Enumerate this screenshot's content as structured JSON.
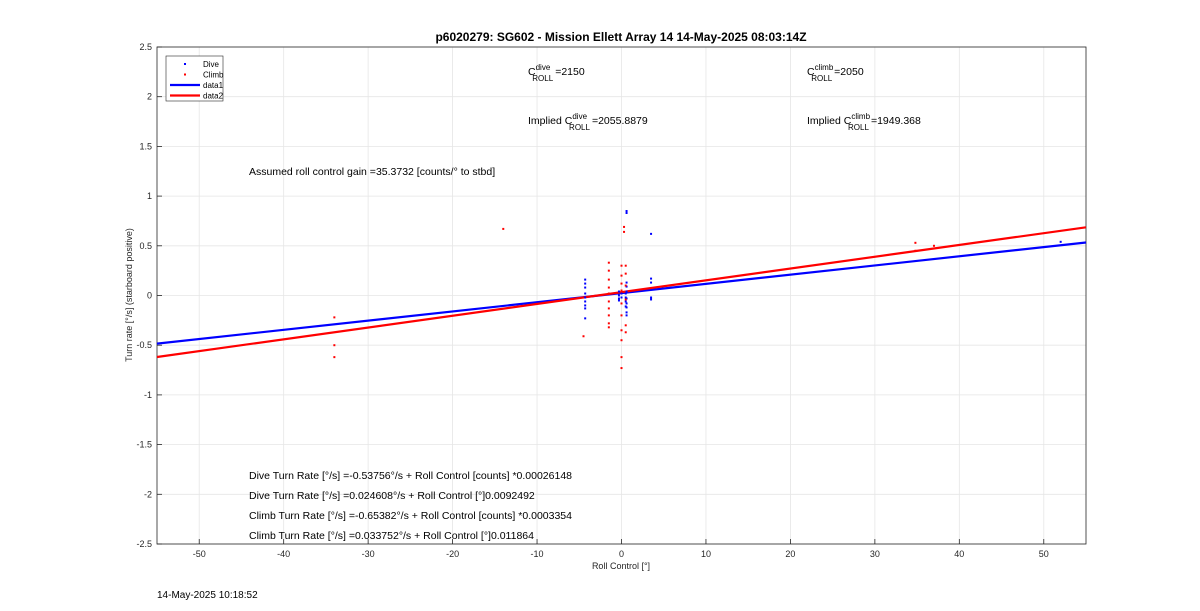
{
  "chart_data": {
    "type": "scatter",
    "title": "p6020279: SG602 - Mission Ellett Array 14 14-May-2025 08:03:14Z",
    "xlabel": "Roll Control [°]",
    "ylabel": "Turn rate [°/s] (starboard positive)",
    "xlim": [
      -55,
      55
    ],
    "ylim": [
      -2.5,
      2.5
    ],
    "xticks": [
      "-50",
      "-40",
      "-30",
      "-20",
      "-10",
      "0",
      "10",
      "20",
      "30",
      "40",
      "50"
    ],
    "yticks": [
      "-2.5",
      "-2",
      "-1.5",
      "-1",
      "-0.5",
      "0",
      "0.5",
      "1",
      "1.5",
      "2",
      "2.5"
    ],
    "grid": true,
    "legend_position": "top-left",
    "legend": [
      {
        "label": "Dive",
        "type": "point",
        "color": "#0000ff"
      },
      {
        "label": "Climb",
        "type": "point",
        "color": "#ff0000"
      },
      {
        "label": "data1",
        "type": "line",
        "color": "#0000ff"
      },
      {
        "label": "data2",
        "type": "line",
        "color": "#ff0000"
      }
    ],
    "series": [
      {
        "name": "Dive",
        "color": "#0000ff",
        "points": [
          [
            -4.3,
            0.16
          ],
          [
            -4.3,
            0.12
          ],
          [
            -4.3,
            0.08
          ],
          [
            -4.3,
            0.02
          ],
          [
            -4.3,
            -0.02
          ],
          [
            -4.3,
            -0.06
          ],
          [
            -4.3,
            -0.1
          ],
          [
            -4.3,
            -0.13
          ],
          [
            -4.3,
            -0.23
          ],
          [
            -0.3,
            0.04
          ],
          [
            -0.3,
            0.0
          ],
          [
            -0.3,
            -0.03
          ],
          [
            -0.3,
            -0.05
          ],
          [
            0,
            0.02
          ],
          [
            0,
            -0.02
          ],
          [
            0.5,
            0.02
          ],
          [
            0.5,
            -0.02
          ],
          [
            0.5,
            -0.06
          ],
          [
            0.5,
            -0.11
          ],
          [
            0.6,
            0.83
          ],
          [
            0.6,
            0.85
          ],
          [
            0.6,
            0.13
          ],
          [
            0.6,
            0.09
          ],
          [
            0.6,
            0.04
          ],
          [
            0.6,
            -0.03
          ],
          [
            0.6,
            -0.08
          ],
          [
            0.6,
            -0.12
          ],
          [
            0.6,
            -0.17
          ],
          [
            0.6,
            -0.2
          ],
          [
            3.5,
            0.62
          ],
          [
            3.5,
            0.17
          ],
          [
            3.5,
            0.13
          ],
          [
            3.5,
            -0.02
          ],
          [
            3.5,
            -0.04
          ],
          [
            52,
            0.54
          ]
        ]
      },
      {
        "name": "Climb",
        "color": "#ff0000",
        "points": [
          [
            -34,
            -0.22
          ],
          [
            -34,
            -0.5
          ],
          [
            -34,
            -0.62
          ],
          [
            -14,
            0.67
          ],
          [
            -4.5,
            -0.41
          ],
          [
            -1.5,
            0.33
          ],
          [
            -1.5,
            0.25
          ],
          [
            -1.5,
            0.16
          ],
          [
            -1.5,
            0.08
          ],
          [
            -1.5,
            0.02
          ],
          [
            -1.5,
            -0.06
          ],
          [
            -1.5,
            -0.13
          ],
          [
            -1.5,
            -0.2
          ],
          [
            -1.5,
            -0.28
          ],
          [
            -1.5,
            -0.32
          ],
          [
            0,
            0.3
          ],
          [
            0,
            0.2
          ],
          [
            0,
            0.12
          ],
          [
            0,
            0.05
          ],
          [
            0,
            -0.08
          ],
          [
            0,
            -0.2
          ],
          [
            0,
            -0.35
          ],
          [
            0,
            -0.45
          ],
          [
            0,
            -0.62
          ],
          [
            0,
            -0.73
          ],
          [
            0.3,
            0.69
          ],
          [
            0.3,
            0.64
          ],
          [
            0.5,
            0.3
          ],
          [
            0.5,
            0.22
          ],
          [
            0.5,
            0.1
          ],
          [
            0.5,
            -0.04
          ],
          [
            0.5,
            -0.3
          ],
          [
            0.5,
            -0.37
          ],
          [
            34.8,
            0.53
          ],
          [
            34.8,
            0.45
          ],
          [
            37,
            0.5
          ]
        ]
      }
    ],
    "fits": [
      {
        "name": "data1",
        "color": "#0000ff",
        "intercept": 0.024608,
        "slope": 0.0092492
      },
      {
        "name": "data2",
        "color": "#ff0000",
        "intercept": 0.033752,
        "slope": 0.011864
      }
    ]
  },
  "annotations": {
    "c_roll_dive": {
      "C": "C",
      "sup": "dive",
      "sub": "ROLL",
      "value": "=2150"
    },
    "c_roll_climb": {
      "C": "C",
      "sup": "climb",
      "sub": "ROLL",
      "value": "=2050"
    },
    "implied_dive": {
      "prefix": "Implied C",
      "sup": "dive",
      "sub": "ROLL",
      "value": "=2055.8879"
    },
    "implied_climb": {
      "prefix": "Implied C",
      "sup": "climb",
      "sub": "ROLL",
      "value": "=1949.368"
    },
    "gain": "Assumed roll control gain =35.3732 [counts/° to stbd]",
    "eq1": "Dive Turn Rate [°/s] =-0.53756°/s + Roll Control [counts] *0.00026148",
    "eq2": "Dive Turn Rate [°/s] =0.024608°/s + Roll Control [°]0.0092492",
    "eq3": "Climb Turn Rate [°/s] =-0.65382°/s + Roll Control [counts] *0.0003354",
    "eq4": "Climb Turn Rate [°/s] =0.033752°/s + Roll Control [°]0.011864"
  },
  "timestamp": "14-May-2025 10:18:52"
}
